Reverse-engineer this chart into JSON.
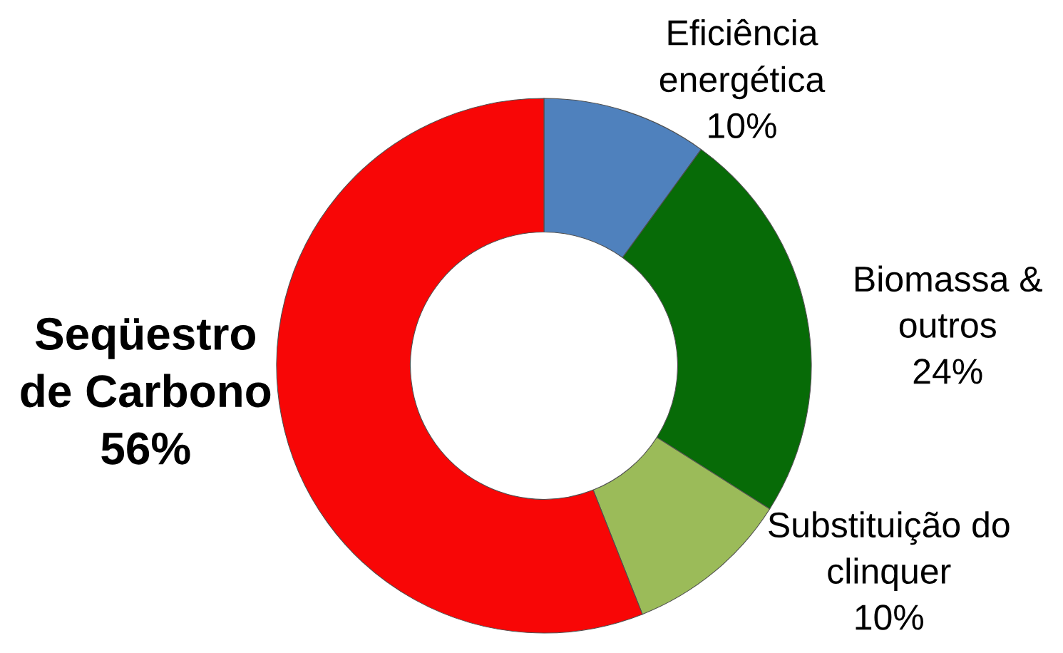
{
  "chart_data": {
    "type": "donut",
    "categories": [
      "Eficiência\nenergética",
      "Biomassa &\noutros",
      "Substituição do\nclinquer",
      "Seqüestro\nde Carbono"
    ],
    "values": [
      10,
      24,
      10,
      56
    ],
    "value_labels": [
      "10%",
      "24%",
      "10%",
      "56%"
    ],
    "colors": [
      "#4f81bd",
      "#076b07",
      "#9bbb59",
      "#f80606"
    ]
  }
}
